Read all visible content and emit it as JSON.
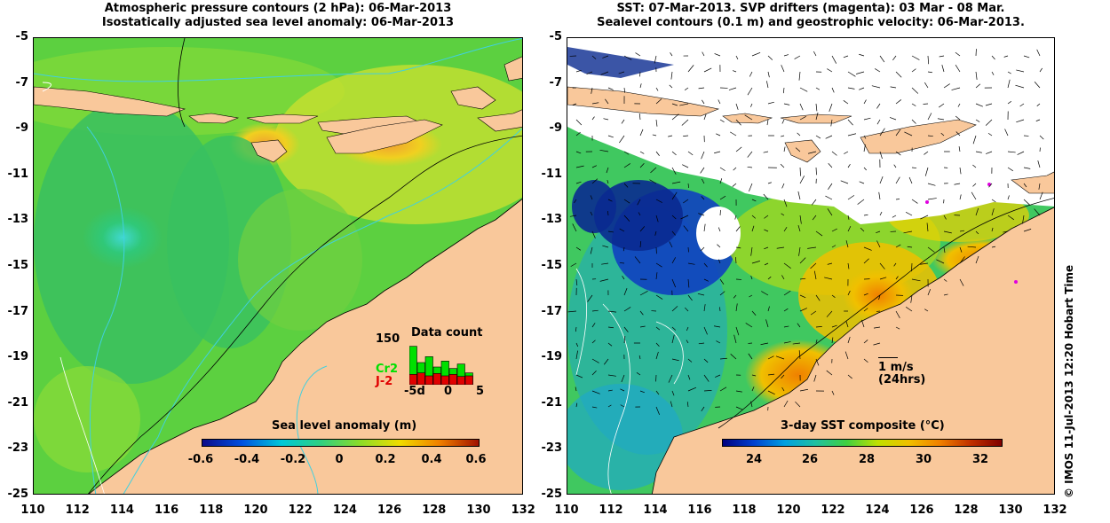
{
  "left_panel": {
    "title_line1": "Atmospheric pressure contours (2 hPa): 06-Mar-2013",
    "title_line2": "Isostatically adjusted sea level anomaly: 06-Mar-2013",
    "colorbar": {
      "title": "Sea level anomaly (m)",
      "ticks": [
        "-0.6",
        "-0.4",
        "-0.2",
        "0",
        "0.2",
        "0.4",
        "0.6"
      ],
      "colors": [
        "#0a0a8a",
        "#0050e0",
        "#00c8d8",
        "#30d080",
        "#8cdc28",
        "#f0dc00",
        "#f08000",
        "#a01000"
      ]
    },
    "data_count": {
      "title": "Data count",
      "ymax_label": "150",
      "series": [
        {
          "name": "Cr2",
          "color": "#00e000",
          "values": [
            130,
            75,
            95,
            60,
            80,
            55,
            70,
            40
          ]
        },
        {
          "name": "J-2",
          "color": "#e00000",
          "values": [
            35,
            40,
            30,
            38,
            30,
            35,
            28,
            30
          ]
        }
      ],
      "x_ticks": [
        "-5d",
        "0",
        "5"
      ]
    }
  },
  "right_panel": {
    "title_line1": "SST: 07-Mar-2013. SVP drifters (magenta): 03 Mar - 08 Mar.",
    "title_line2": "Sealevel contours (0.1 m) and geostrophic velocity: 06-Mar-2013.",
    "colorbar": {
      "title": "3-day SST composite (°C)",
      "ticks": [
        "24",
        "26",
        "28",
        "30",
        "32"
      ],
      "colors": [
        "#000080",
        "#0040d0",
        "#00a0e0",
        "#20c0a0",
        "#40d040",
        "#c0e000",
        "#f0c000",
        "#f08000",
        "#c03000",
        "#800000"
      ]
    },
    "vector_scale": {
      "label_line1": "1 m/s",
      "label_line2": "(24hrs)"
    }
  },
  "axes": {
    "y_ticks": [
      "-5",
      "-7",
      "-9",
      "-11",
      "-13",
      "-15",
      "-17",
      "-19",
      "-21",
      "-23",
      "-25"
    ],
    "x_ticks": [
      "110",
      "112",
      "114",
      "116",
      "118",
      "120",
      "122",
      "124",
      "126",
      "128",
      "130",
      "132"
    ]
  },
  "credit": "© IMOS 11-Jul-2013 12:20 Hobart Time",
  "colors": {
    "land": "#f9c89b",
    "cloud": "#ffffff"
  }
}
